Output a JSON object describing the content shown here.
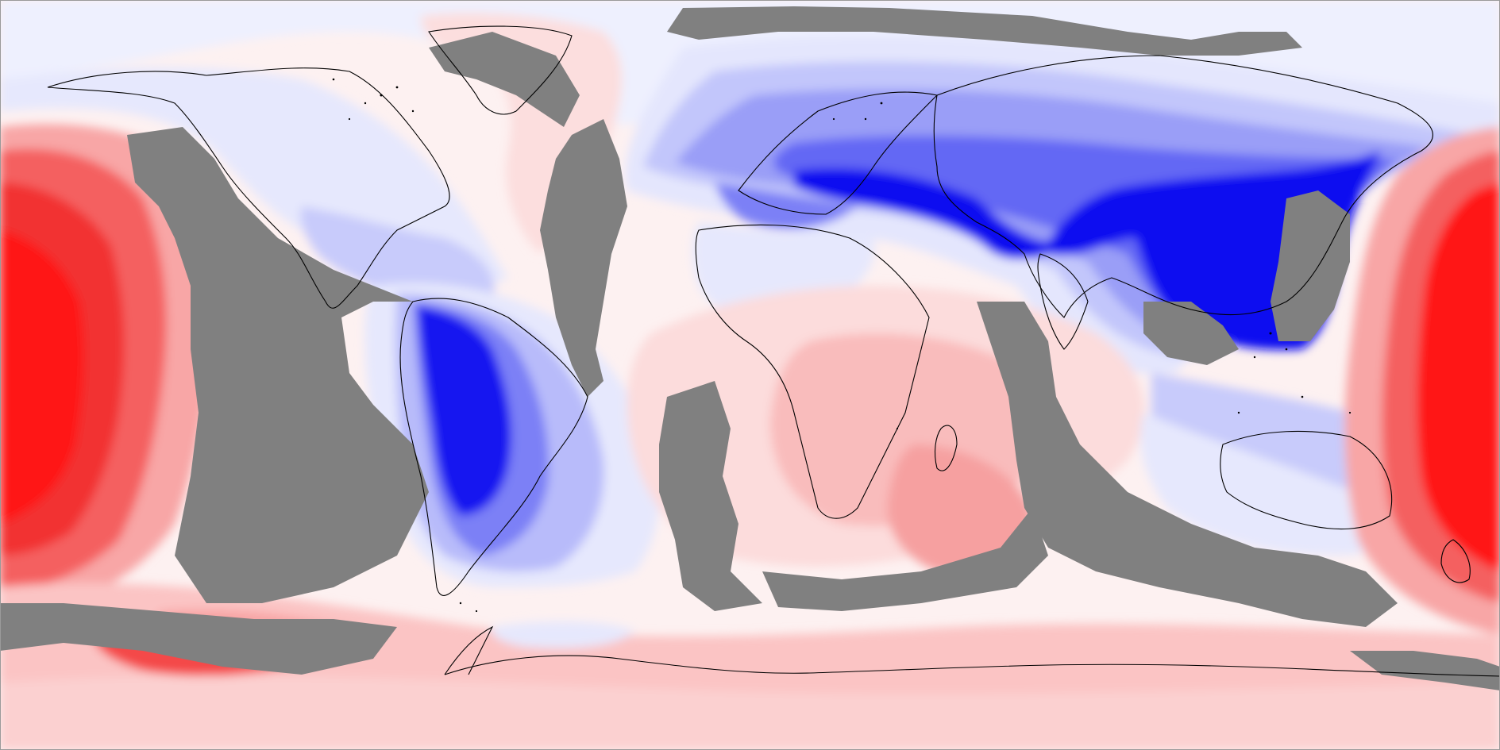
{
  "map": {
    "projection": "equirectangular",
    "kind": "global-contour-field",
    "colormap": {
      "negative": "#0000ff",
      "near_zero": "#ffffff",
      "positive": "#ff0000",
      "masked": "#808080",
      "coastline": "#000000"
    },
    "levels": [
      "#0a0af0",
      "#2a2af2",
      "#5252f4",
      "#7c7cf6",
      "#a4a4f8",
      "#c8c8fb",
      "#e8e8fd",
      "#fdf1f1",
      "#fcdcdc",
      "#fbc4c4",
      "#f8a6a6",
      "#f68484",
      "#f45c5c",
      "#f23636",
      "#ff1010"
    ],
    "labels": {}
  }
}
